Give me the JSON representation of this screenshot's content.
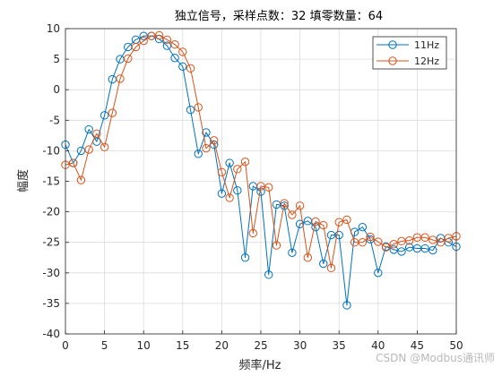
{
  "colors": {
    "series1": "#0072BD",
    "series2": "#D95319",
    "grid": "#dcdcdc",
    "axis": "#262626"
  },
  "chart_data": {
    "type": "line",
    "title": "独立信号，采样点数：32 填零数量：64",
    "xlabel": "频率/Hz",
    "ylabel": "幅度",
    "xlim": [
      0,
      50
    ],
    "ylim": [
      -40,
      10
    ],
    "xticks": [
      "0",
      "5",
      "10",
      "15",
      "20",
      "25",
      "30",
      "35",
      "40",
      "45",
      "50"
    ],
    "yticks": [
      "10",
      "5",
      "0",
      "-5",
      "-10",
      "-15",
      "-20",
      "-25",
      "-30",
      "-35",
      "-40"
    ],
    "grid": true,
    "legend_position": "top-right",
    "markers": "circle",
    "series": [
      {
        "name": "11Hz",
        "x": [
          0,
          1,
          2,
          3,
          4,
          5,
          6,
          7,
          8,
          9,
          10,
          11,
          12,
          13,
          14,
          15,
          16,
          17,
          18,
          19,
          20,
          21,
          22,
          23,
          24,
          25,
          26,
          27,
          28,
          29,
          30,
          31,
          32,
          33,
          34,
          35,
          36,
          37,
          38,
          39,
          40,
          41,
          42,
          43,
          44,
          45,
          46,
          47,
          48,
          49,
          50
        ],
        "y": [
          -9,
          -12,
          -10,
          -6.5,
          -8.5,
          -4.2,
          1.7,
          5,
          7,
          8.2,
          8.8,
          8.8,
          8.3,
          7.2,
          5.2,
          3.8,
          -3.3,
          -10.5,
          -7,
          -9,
          -17,
          -12,
          -16.5,
          -27.5,
          -15.8,
          -16.7,
          -30.3,
          -18.8,
          -19,
          -26.7,
          -22,
          -21.5,
          -22.5,
          -28.5,
          -23.8,
          -23.8,
          -35.3,
          -23.3,
          -22.5,
          -24.5,
          -30,
          -25.7,
          -26.2,
          -26.5,
          -25.8,
          -26,
          -26,
          -26.3,
          -24.3,
          -25,
          -25.7
        ]
      },
      {
        "name": "12Hz",
        "x": [
          0,
          1,
          2,
          3,
          4,
          5,
          6,
          7,
          8,
          9,
          10,
          11,
          12,
          13,
          14,
          15,
          16,
          17,
          18,
          19,
          20,
          21,
          22,
          23,
          24,
          25,
          26,
          27,
          28,
          29,
          30,
          31,
          32,
          33,
          34,
          35,
          36,
          37,
          38,
          39,
          40,
          41,
          42,
          43,
          44,
          45,
          46,
          47,
          48,
          49,
          50
        ],
        "y": [
          -12.3,
          -12,
          -14.8,
          -9.8,
          -7.2,
          -9.4,
          -3.8,
          1.8,
          5.1,
          7,
          8,
          8.8,
          8.9,
          8.2,
          7.4,
          6.2,
          3.5,
          -2.9,
          -9.6,
          -8.3,
          -13.5,
          -17.7,
          -13,
          -11.8,
          -23.5,
          -15.8,
          -16,
          -25.5,
          -18.6,
          -20.5,
          -19,
          -27.5,
          -21.6,
          -22.2,
          -29.2,
          -21.7,
          -21.3,
          -25,
          -25,
          -24.1,
          -24.9,
          -25.8,
          -25.3,
          -24.8,
          -24.7,
          -24.2,
          -24.2,
          -24.6,
          -25,
          -24.3,
          -24
        ]
      }
    ]
  },
  "watermark": {
    "text": "CSDN @Modbus通讯师"
  }
}
